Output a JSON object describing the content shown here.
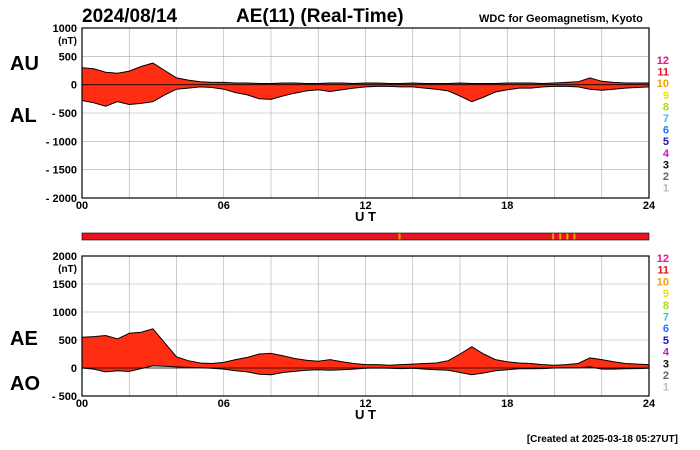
{
  "header": {
    "date": "2024/08/14",
    "title": "AE(11) (Real-Time)",
    "source": "WDC for Geomagnetism, Kyoto"
  },
  "footer": {
    "created": "[Created at 2025-03-18 05:27UT]"
  },
  "scale_legend": {
    "labels": [
      "12",
      "11",
      "10",
      "9",
      "8",
      "7",
      "6",
      "5",
      "4",
      "3",
      "2",
      "1"
    ],
    "colors": [
      "#e8168c",
      "#e8141d",
      "#f5a000",
      "#f0e400",
      "#a6e000",
      "#28c8e8",
      "#1e78ff",
      "#1e14b4",
      "#c814c8",
      "#111111",
      "#666666",
      "#bbbbbb"
    ]
  },
  "colors": {
    "fill": "#ff2e12",
    "outline": "#000000",
    "grid": "#aaaaaa",
    "coverage": "#e8141d",
    "coverage_mark": "#f5a000"
  },
  "chart_data": [
    {
      "type": "area",
      "name": "AU/AL",
      "labels": {
        "upper": "AU",
        "lower": "AL"
      },
      "ylabel": "(nT)",
      "xlabel": "U T",
      "xlim": [
        0,
        24
      ],
      "ylim": [
        -2000,
        1000
      ],
      "xticks": [
        0,
        6,
        12,
        18,
        24
      ],
      "xtick_labels": [
        "00",
        "06",
        "12",
        "18",
        "24"
      ],
      "yticks": [
        1000,
        500,
        0,
        -500,
        -1000,
        -1500,
        -2000
      ],
      "ytick_labels": [
        "1000",
        "500",
        "0",
        "- 500",
        "- 1000",
        "- 1500",
        "- 2000"
      ],
      "grid": true,
      "x": [
        0,
        0.5,
        1,
        1.5,
        2,
        2.5,
        3,
        3.5,
        4,
        4.5,
        5,
        5.5,
        6,
        6.5,
        7,
        7.5,
        8,
        8.5,
        9,
        9.5,
        10,
        10.5,
        11,
        11.5,
        12,
        12.5,
        13,
        13.5,
        14,
        14.5,
        15,
        15.5,
        16,
        16.5,
        17,
        17.5,
        18,
        18.5,
        19,
        19.5,
        20,
        20.5,
        21,
        21.5,
        22,
        22.5,
        23,
        23.5,
        24
      ],
      "series": [
        {
          "name": "AU",
          "values": [
            300,
            280,
            220,
            200,
            240,
            320,
            380,
            250,
            120,
            80,
            50,
            40,
            40,
            30,
            30,
            20,
            20,
            30,
            30,
            20,
            20,
            30,
            30,
            20,
            30,
            30,
            20,
            20,
            30,
            20,
            20,
            20,
            30,
            20,
            20,
            20,
            30,
            30,
            30,
            20,
            30,
            40,
            50,
            120,
            60,
            40,
            30,
            30,
            30
          ]
        },
        {
          "name": "AL",
          "values": [
            -280,
            -320,
            -380,
            -300,
            -350,
            -330,
            -300,
            -180,
            -80,
            -60,
            -40,
            -50,
            -80,
            -140,
            -180,
            -250,
            -260,
            -200,
            -150,
            -110,
            -90,
            -120,
            -90,
            -60,
            -40,
            -30,
            -30,
            -40,
            -40,
            -60,
            -80,
            -110,
            -200,
            -300,
            -220,
            -130,
            -90,
            -60,
            -60,
            -40,
            -30,
            -30,
            -40,
            -80,
            -100,
            -80,
            -60,
            -50,
            -40
          ]
        }
      ]
    },
    {
      "type": "area",
      "name": "AE/AO",
      "labels": {
        "upper": "AE",
        "lower": "AO"
      },
      "ylabel": "(nT)",
      "xlabel": "U T",
      "xlim": [
        0,
        24
      ],
      "ylim": [
        -500,
        2000
      ],
      "xticks": [
        0,
        6,
        12,
        18,
        24
      ],
      "xtick_labels": [
        "00",
        "06",
        "12",
        "18",
        "24"
      ],
      "yticks": [
        2000,
        1500,
        1000,
        500,
        0,
        -500
      ],
      "ytick_labels": [
        "2000",
        "1500",
        "1000",
        "500",
        "0",
        "- 500"
      ],
      "grid": true,
      "x": [
        0,
        0.5,
        1,
        1.5,
        2,
        2.5,
        3,
        3.5,
        4,
        4.5,
        5,
        5.5,
        6,
        6.5,
        7,
        7.5,
        8,
        8.5,
        9,
        9.5,
        10,
        10.5,
        11,
        11.5,
        12,
        12.5,
        13,
        13.5,
        14,
        14.5,
        15,
        15.5,
        16,
        16.5,
        17,
        17.5,
        18,
        18.5,
        19,
        19.5,
        20,
        20.5,
        21,
        21.5,
        22,
        22.5,
        23,
        23.5,
        24
      ],
      "series": [
        {
          "name": "AE",
          "values": [
            550,
            560,
            580,
            520,
            620,
            640,
            700,
            450,
            200,
            130,
            90,
            80,
            100,
            150,
            190,
            250,
            260,
            220,
            170,
            140,
            120,
            150,
            110,
            80,
            60,
            60,
            50,
            60,
            70,
            80,
            90,
            130,
            250,
            380,
            250,
            150,
            110,
            90,
            80,
            60,
            50,
            60,
            80,
            180,
            150,
            110,
            80,
            70,
            60
          ]
        },
        {
          "name": "AO",
          "values": [
            0,
            -20,
            -70,
            -50,
            -60,
            -10,
            40,
            30,
            20,
            10,
            5,
            -5,
            -20,
            -50,
            -70,
            -110,
            -120,
            -80,
            -60,
            -40,
            -30,
            -40,
            -30,
            -20,
            -5,
            0,
            -5,
            -10,
            -5,
            -20,
            -30,
            -40,
            -80,
            -120,
            -90,
            -50,
            -30,
            -15,
            -15,
            -10,
            0,
            5,
            5,
            20,
            -20,
            -20,
            -15,
            -10,
            -5
          ]
        }
      ]
    }
  ]
}
